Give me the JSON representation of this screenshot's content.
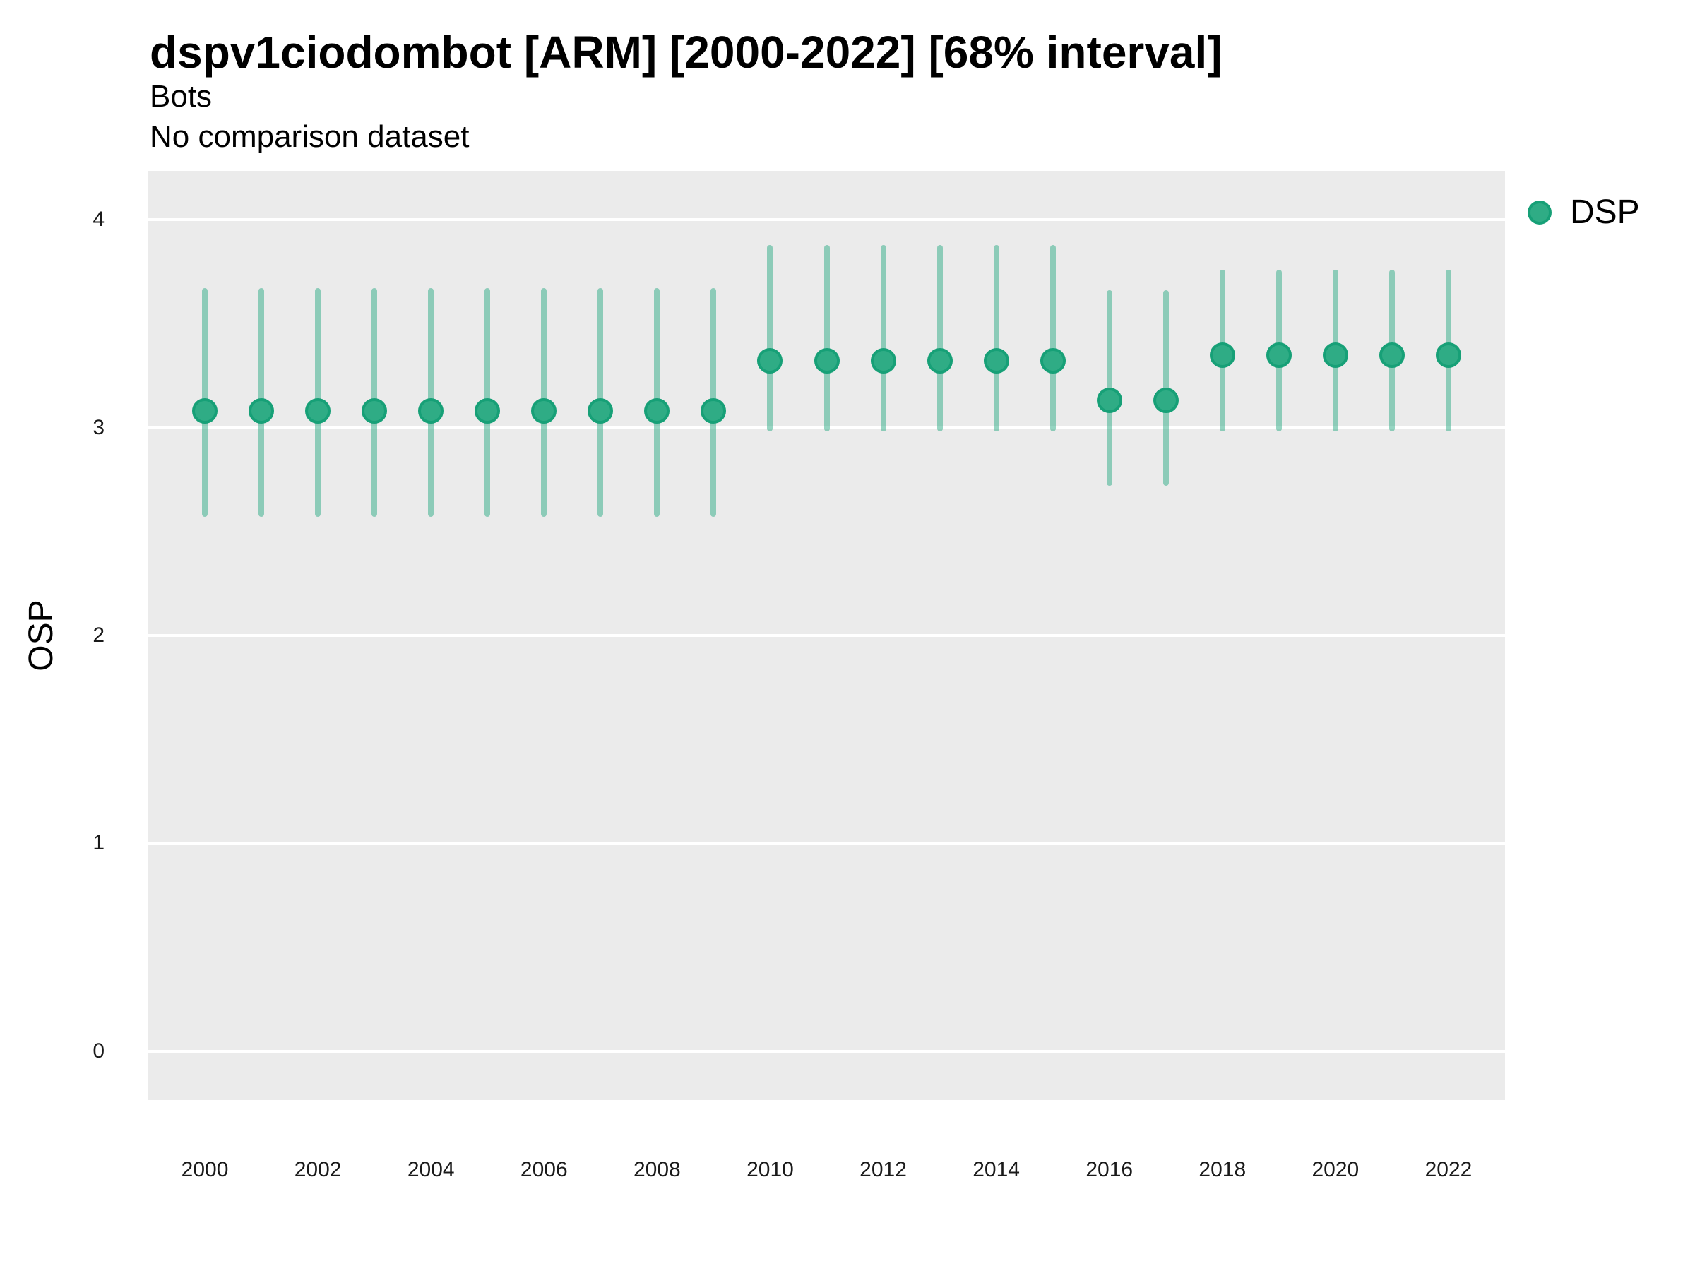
{
  "chart_data": {
    "type": "scatter",
    "title": "dspv1ciodombot [ARM] [2000-2022] [68% interval]",
    "subtitle": [
      "Bots",
      "No comparison dataset"
    ],
    "ylabel": "OSP",
    "xlabel": "",
    "interval_label": "68% interval",
    "legend_position": "right",
    "grid": {
      "major_y": true,
      "minor": false,
      "gridline_color": "#FFFFFF"
    },
    "x_domain": [
      1999,
      2023
    ],
    "y_domain": [
      -0.235,
      4.235
    ],
    "x_ticks": [
      2000,
      2002,
      2004,
      2006,
      2008,
      2010,
      2012,
      2014,
      2016,
      2018,
      2020,
      2022
    ],
    "y_ticks": [
      0,
      1,
      2,
      3,
      4
    ],
    "series": [
      {
        "name": "DSP",
        "x": [
          2000,
          2001,
          2002,
          2003,
          2004,
          2005,
          2006,
          2007,
          2008,
          2009,
          2010,
          2011,
          2012,
          2013,
          2014,
          2015,
          2016,
          2017,
          2018,
          2019,
          2020,
          2021,
          2022
        ],
        "mid": [
          3.08,
          3.08,
          3.08,
          3.08,
          3.08,
          3.08,
          3.08,
          3.08,
          3.08,
          3.08,
          3.32,
          3.32,
          3.32,
          3.32,
          3.32,
          3.32,
          3.13,
          3.13,
          3.35,
          3.35,
          3.35,
          3.35,
          3.35
        ],
        "lo": [
          2.57,
          2.57,
          2.57,
          2.57,
          2.57,
          2.57,
          2.57,
          2.57,
          2.57,
          2.57,
          2.98,
          2.98,
          2.98,
          2.98,
          2.98,
          2.98,
          2.72,
          2.72,
          2.98,
          2.98,
          2.98,
          2.98,
          2.98
        ],
        "hi": [
          3.67,
          3.67,
          3.67,
          3.67,
          3.67,
          3.67,
          3.67,
          3.67,
          3.67,
          3.67,
          3.88,
          3.88,
          3.88,
          3.88,
          3.88,
          3.88,
          3.66,
          3.66,
          3.76,
          3.76,
          3.76,
          3.76,
          3.76
        ]
      }
    ],
    "colors": {
      "point_fill": "#2FAC85",
      "point_stroke": "#17A077",
      "interval_bar": "rgba(46,172,133,0.5)",
      "panel_bg": "#EBEBEB",
      "gridline": "#FFFFFF",
      "text": "#000000"
    }
  }
}
